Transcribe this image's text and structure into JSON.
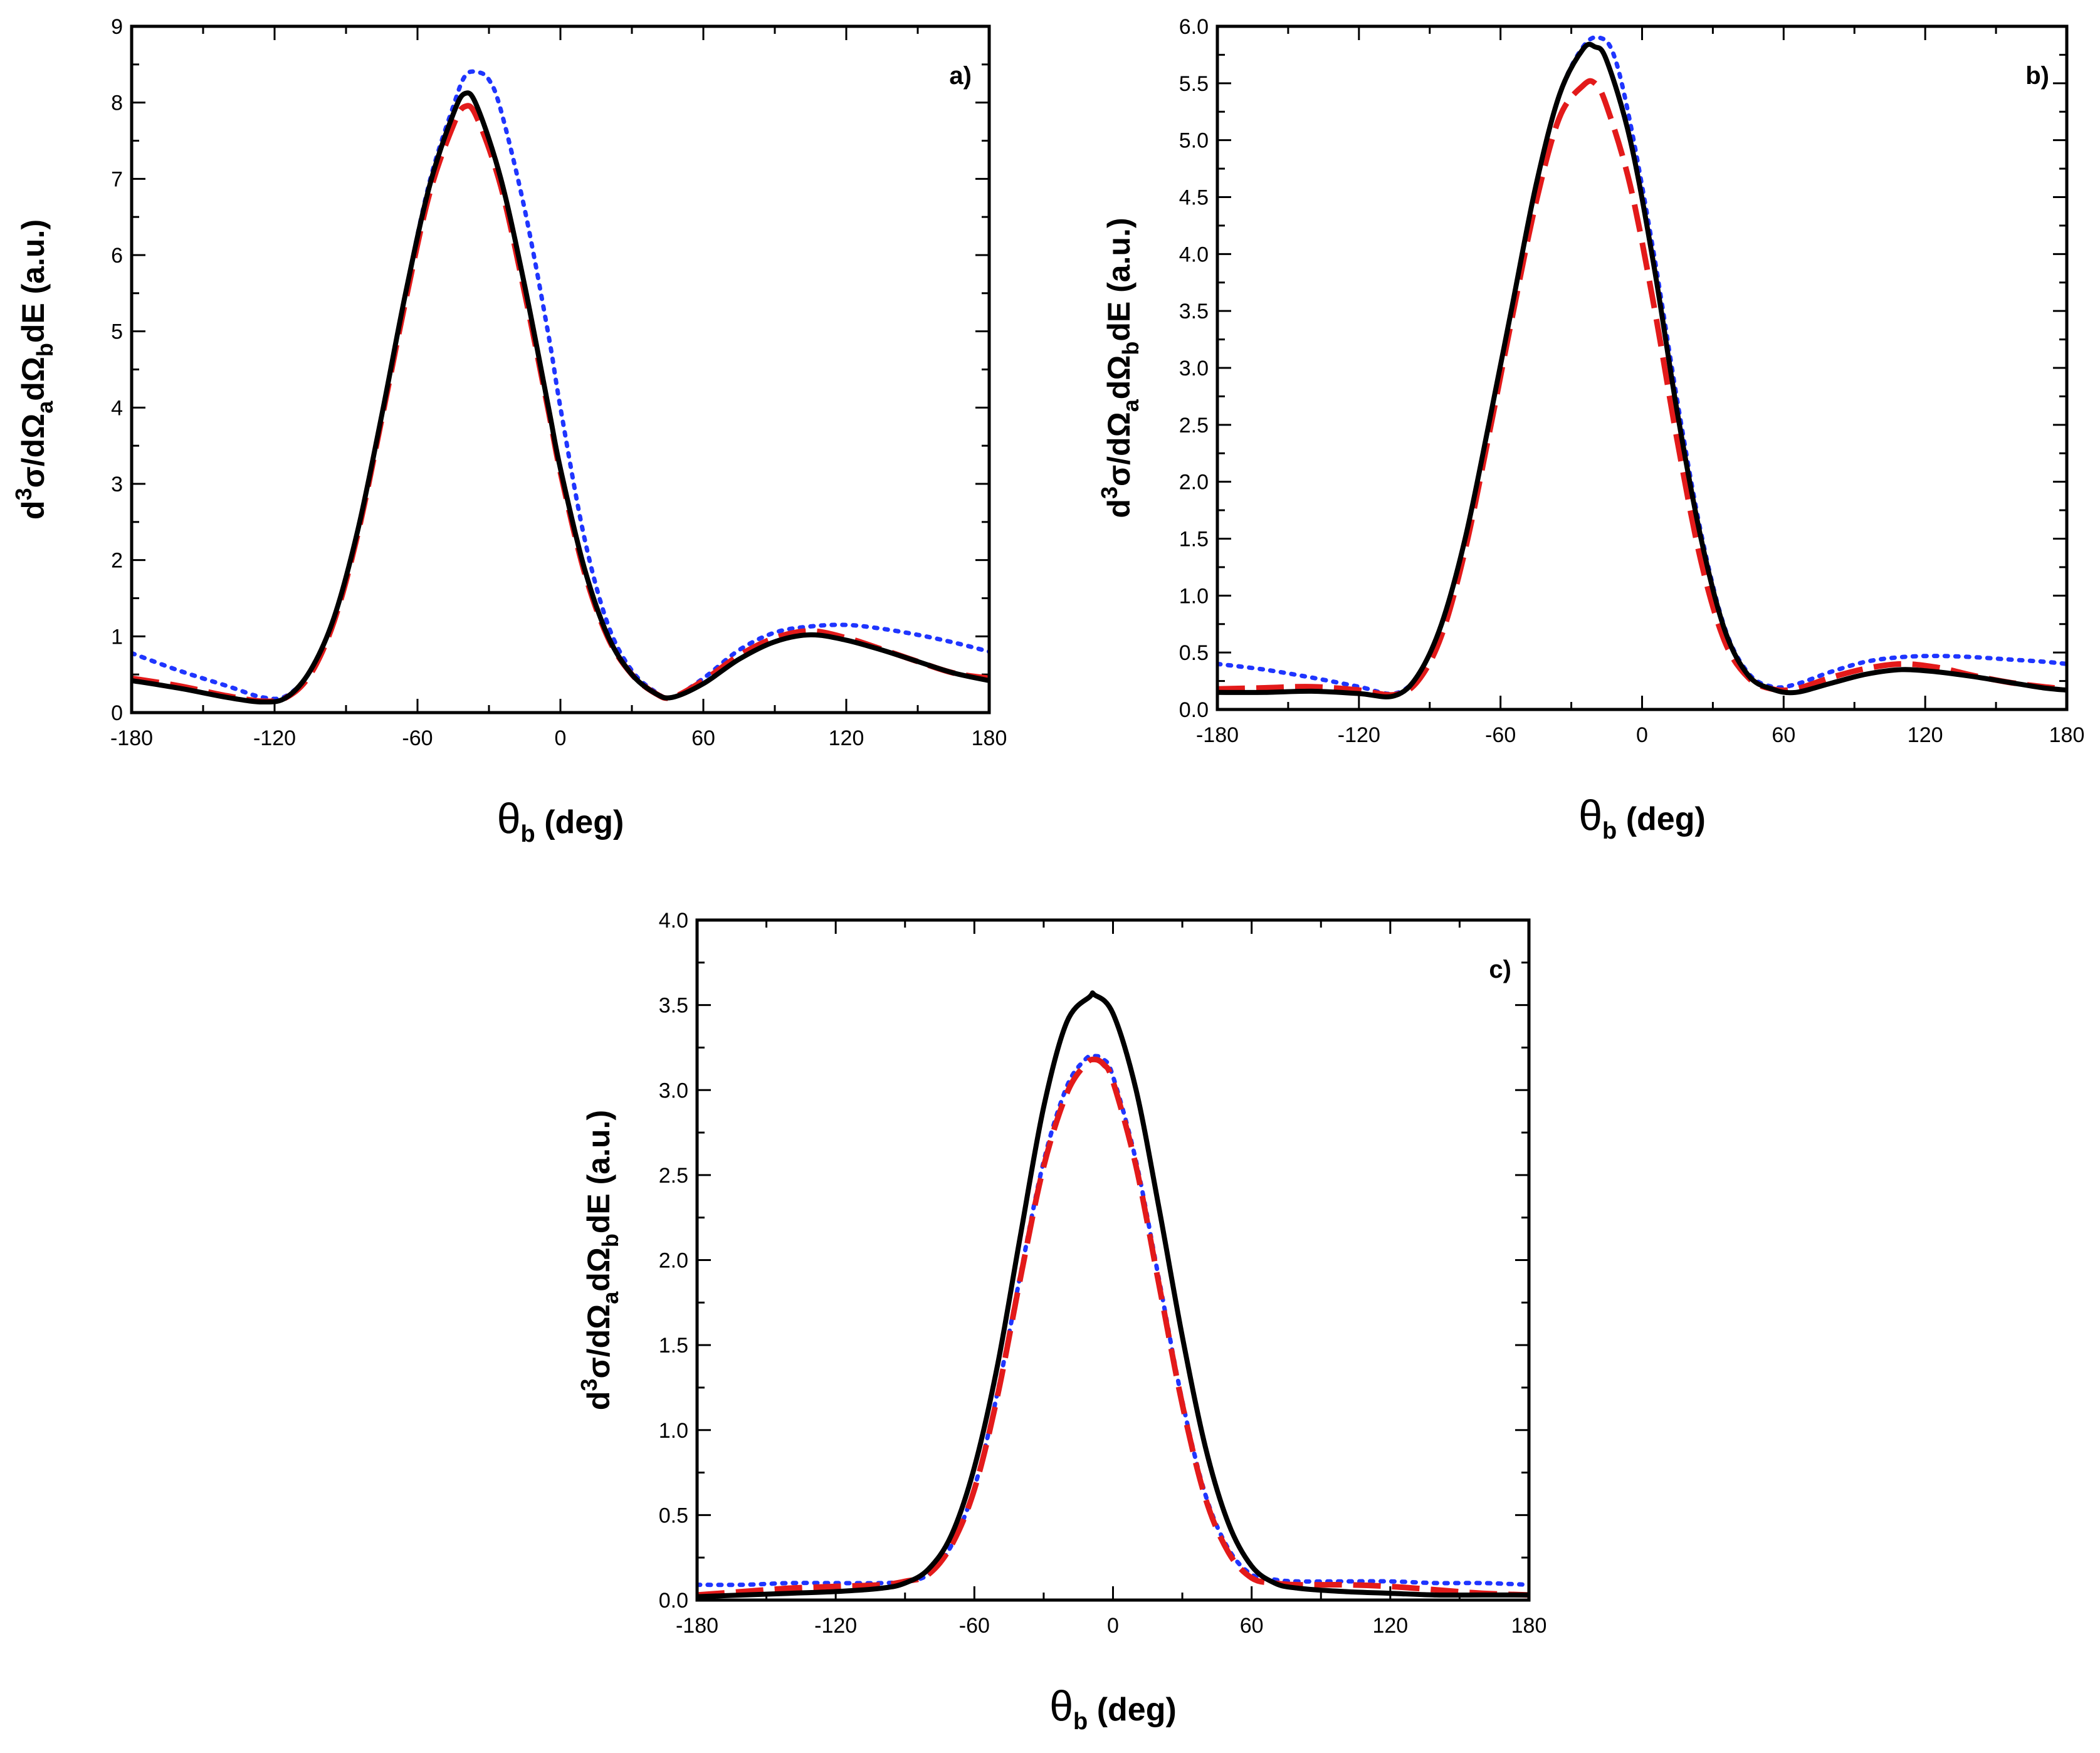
{
  "chart_data": [
    {
      "type": "line",
      "panel_label": "a)",
      "x_label": {
        "symbol": "θ",
        "sub": "b",
        "unit": " (deg)"
      },
      "y_label": {
        "p1": "d",
        "sup": "3",
        "p2": "σ/dΩ",
        "sub1": "a",
        "p3": "dΩ",
        "sub2": "b",
        "p4": "dE (a.u.)"
      },
      "xlim": [
        -180,
        180
      ],
      "ylim": [
        0,
        9
      ],
      "xticks": [
        "-180",
        "-120",
        "-60",
        "0",
        "60",
        "120",
        "180"
      ],
      "xtick_values": [
        -180,
        -120,
        -60,
        0,
        60,
        120,
        180
      ],
      "yticks": [
        "0",
        "1",
        "2",
        "3",
        "4",
        "5",
        "6",
        "7",
        "8",
        "9"
      ],
      "ytick_values": [
        0,
        1,
        2,
        3,
        4,
        5,
        6,
        7,
        8,
        9
      ],
      "series": [
        {
          "name": "solid",
          "color": "#000000",
          "style": "solid",
          "x": [
            -180,
            -160,
            -140,
            -125,
            -115,
            -105,
            -95,
            -85,
            -75,
            -65,
            -55,
            -45,
            -40,
            -35,
            -25,
            -15,
            -5,
            0,
            10,
            20,
            30,
            40,
            47,
            60,
            75,
            90,
            105,
            120,
            135,
            150,
            165,
            180
          ],
          "y": [
            0.42,
            0.32,
            0.2,
            0.14,
            0.2,
            0.55,
            1.25,
            2.4,
            3.9,
            5.5,
            6.9,
            7.85,
            8.12,
            7.95,
            7.0,
            5.6,
            4.0,
            3.2,
            1.9,
            1.0,
            0.5,
            0.25,
            0.2,
            0.38,
            0.7,
            0.93,
            1.02,
            0.95,
            0.82,
            0.67,
            0.52,
            0.42
          ]
        },
        {
          "name": "dashed",
          "color": "#e31a1a",
          "style": "dashed",
          "x": [
            -180,
            -160,
            -140,
            -125,
            -115,
            -105,
            -95,
            -85,
            -75,
            -65,
            -55,
            -45,
            -40,
            -35,
            -25,
            -15,
            -5,
            0,
            10,
            20,
            30,
            40,
            47,
            60,
            75,
            90,
            105,
            120,
            135,
            150,
            165,
            180
          ],
          "y": [
            0.45,
            0.35,
            0.22,
            0.15,
            0.2,
            0.5,
            1.2,
            2.35,
            3.85,
            5.4,
            6.8,
            7.7,
            7.95,
            7.8,
            6.9,
            5.5,
            3.95,
            3.15,
            1.85,
            0.98,
            0.5,
            0.25,
            0.2,
            0.42,
            0.75,
            0.98,
            1.07,
            0.98,
            0.83,
            0.67,
            0.52,
            0.45
          ]
        },
        {
          "name": "dotted",
          "color": "#1f35ff",
          "style": "dotted",
          "x": [
            -180,
            -160,
            -140,
            -125,
            -115,
            -105,
            -95,
            -85,
            -75,
            -65,
            -55,
            -45,
            -40,
            -35,
            -30,
            -25,
            -15,
            -5,
            0,
            10,
            20,
            30,
            40,
            47,
            60,
            75,
            90,
            105,
            120,
            135,
            150,
            165,
            180
          ],
          "y": [
            0.78,
            0.55,
            0.35,
            0.2,
            0.22,
            0.55,
            1.25,
            2.4,
            3.9,
            5.5,
            6.95,
            7.95,
            8.35,
            8.4,
            8.3,
            7.9,
            6.6,
            4.95,
            4.0,
            2.3,
            1.15,
            0.55,
            0.27,
            0.2,
            0.45,
            0.82,
            1.05,
            1.13,
            1.15,
            1.1,
            1.02,
            0.92,
            0.8
          ]
        }
      ]
    },
    {
      "type": "line",
      "panel_label": "b)",
      "x_label": {
        "symbol": "θ",
        "sub": "b",
        "unit": " (deg)"
      },
      "y_label": {
        "p1": "d",
        "sup": "3",
        "p2": "σ/dΩ",
        "sub1": "a",
        "p3": "dΩ",
        "sub2": "b",
        "p4": "dE (a.u.)"
      },
      "xlim": [
        -180,
        180
      ],
      "ylim": [
        0,
        6
      ],
      "xticks": [
        "-180",
        "-120",
        "-60",
        "0",
        "60",
        "120",
        "180"
      ],
      "xtick_values": [
        -180,
        -120,
        -60,
        0,
        60,
        120,
        180
      ],
      "yticks": [
        "0.0",
        "0.5",
        "1.0",
        "1.5",
        "2.0",
        "2.5",
        "3.0",
        "3.5",
        "4.0",
        "4.5",
        "5.0",
        "5.5",
        "6.0"
      ],
      "ytick_values": [
        0,
        0.5,
        1,
        1.5,
        2,
        2.5,
        3,
        3.5,
        4,
        4.5,
        5,
        5.5,
        6
      ],
      "series": [
        {
          "name": "solid",
          "color": "#000000",
          "style": "solid",
          "x": [
            -180,
            -160,
            -140,
            -120,
            -105,
            -95,
            -85,
            -75,
            -65,
            -55,
            -45,
            -35,
            -25,
            -20,
            -15,
            -5,
            5,
            15,
            25,
            35,
            45,
            55,
            65,
            80,
            95,
            110,
            125,
            140,
            155,
            170,
            180
          ],
          "y": [
            0.15,
            0.15,
            0.16,
            0.14,
            0.12,
            0.3,
            0.75,
            1.5,
            2.5,
            3.55,
            4.6,
            5.4,
            5.8,
            5.82,
            5.7,
            5.0,
            3.9,
            2.6,
            1.5,
            0.7,
            0.3,
            0.18,
            0.15,
            0.23,
            0.31,
            0.35,
            0.33,
            0.29,
            0.24,
            0.19,
            0.17
          ]
        },
        {
          "name": "dashed",
          "color": "#e31a1a",
          "style": "dashed",
          "x": [
            -180,
            -160,
            -140,
            -120,
            -105,
            -95,
            -85,
            -75,
            -65,
            -55,
            -45,
            -35,
            -25,
            -20,
            -15,
            -5,
            5,
            15,
            25,
            35,
            45,
            55,
            65,
            80,
            95,
            110,
            125,
            140,
            155,
            170,
            180
          ],
          "y": [
            0.18,
            0.19,
            0.2,
            0.17,
            0.13,
            0.25,
            0.65,
            1.4,
            2.4,
            3.45,
            4.45,
            5.2,
            5.48,
            5.5,
            5.3,
            4.6,
            3.55,
            2.35,
            1.3,
            0.6,
            0.28,
            0.18,
            0.18,
            0.28,
            0.36,
            0.4,
            0.37,
            0.3,
            0.24,
            0.2,
            0.18
          ]
        },
        {
          "name": "dotted",
          "color": "#1f35ff",
          "style": "dotted",
          "x": [
            -180,
            -160,
            -140,
            -120,
            -105,
            -95,
            -85,
            -75,
            -65,
            -55,
            -45,
            -35,
            -25,
            -18,
            -12,
            -5,
            5,
            15,
            25,
            35,
            45,
            55,
            65,
            80,
            95,
            110,
            125,
            140,
            155,
            170,
            180
          ],
          "y": [
            0.4,
            0.35,
            0.28,
            0.2,
            0.14,
            0.3,
            0.75,
            1.5,
            2.5,
            3.55,
            4.6,
            5.4,
            5.82,
            5.9,
            5.75,
            5.15,
            4.0,
            2.7,
            1.55,
            0.72,
            0.32,
            0.2,
            0.22,
            0.33,
            0.42,
            0.46,
            0.47,
            0.46,
            0.44,
            0.42,
            0.4
          ]
        }
      ]
    },
    {
      "type": "line",
      "panel_label": "c)",
      "x_label": {
        "symbol": "θ",
        "sub": "b",
        "unit": " (deg)"
      },
      "y_label": {
        "p1": "d",
        "sup": "3",
        "p2": "σ/dΩ",
        "sub1": "a",
        "p3": "dΩ",
        "sub2": "b",
        "p4": "dE (a.u.)"
      },
      "xlim": [
        -180,
        180
      ],
      "ylim": [
        0,
        4
      ],
      "xticks": [
        "-180",
        "-120",
        "-60",
        "0",
        "60",
        "120",
        "180"
      ],
      "xtick_values": [
        -180,
        -120,
        -60,
        0,
        60,
        120,
        180
      ],
      "yticks": [
        "0.0",
        "0.5",
        "1.0",
        "1.5",
        "2.0",
        "2.5",
        "3.0",
        "3.5",
        "4.0"
      ],
      "ytick_values": [
        0,
        0.5,
        1,
        1.5,
        2,
        2.5,
        3,
        3.5,
        4
      ],
      "series": [
        {
          "name": "solid",
          "color": "#000000",
          "style": "solid",
          "x": [
            -180,
            -160,
            -140,
            -120,
            -100,
            -90,
            -80,
            -70,
            -60,
            -50,
            -40,
            -30,
            -20,
            -10,
            -8,
            0,
            10,
            20,
            30,
            40,
            50,
            60,
            70,
            80,
            100,
            120,
            140,
            160,
            180
          ],
          "y": [
            0.02,
            0.03,
            0.04,
            0.05,
            0.07,
            0.1,
            0.18,
            0.38,
            0.78,
            1.38,
            2.15,
            2.9,
            3.4,
            3.55,
            3.56,
            3.45,
            3.0,
            2.3,
            1.55,
            0.9,
            0.45,
            0.2,
            0.1,
            0.07,
            0.05,
            0.04,
            0.03,
            0.03,
            0.03
          ]
        },
        {
          "name": "dashed",
          "color": "#e31a1a",
          "style": "dashed",
          "x": [
            -180,
            -160,
            -140,
            -120,
            -100,
            -90,
            -80,
            -70,
            -60,
            -50,
            -40,
            -30,
            -20,
            -12,
            -8,
            -4,
            0,
            10,
            20,
            30,
            40,
            50,
            60,
            70,
            80,
            100,
            120,
            140,
            160,
            180
          ],
          "y": [
            0.03,
            0.05,
            0.07,
            0.08,
            0.09,
            0.11,
            0.15,
            0.32,
            0.65,
            1.2,
            1.9,
            2.55,
            2.98,
            3.15,
            3.18,
            3.15,
            3.05,
            2.55,
            1.85,
            1.15,
            0.6,
            0.28,
            0.13,
            0.1,
            0.09,
            0.09,
            0.08,
            0.06,
            0.04,
            0.03
          ]
        },
        {
          "name": "dotted",
          "color": "#1f35ff",
          "style": "dotted",
          "x": [
            -180,
            -160,
            -140,
            -120,
            -100,
            -90,
            -80,
            -70,
            -60,
            -50,
            -40,
            -30,
            -20,
            -12,
            -8,
            -4,
            0,
            10,
            20,
            30,
            40,
            50,
            60,
            70,
            80,
            100,
            120,
            140,
            160,
            180
          ],
          "y": [
            0.09,
            0.09,
            0.1,
            0.1,
            0.1,
            0.11,
            0.15,
            0.32,
            0.66,
            1.22,
            1.92,
            2.58,
            3.02,
            3.18,
            3.2,
            3.18,
            3.08,
            2.58,
            1.88,
            1.17,
            0.62,
            0.3,
            0.15,
            0.12,
            0.11,
            0.11,
            0.11,
            0.1,
            0.1,
            0.09
          ]
        }
      ]
    }
  ]
}
